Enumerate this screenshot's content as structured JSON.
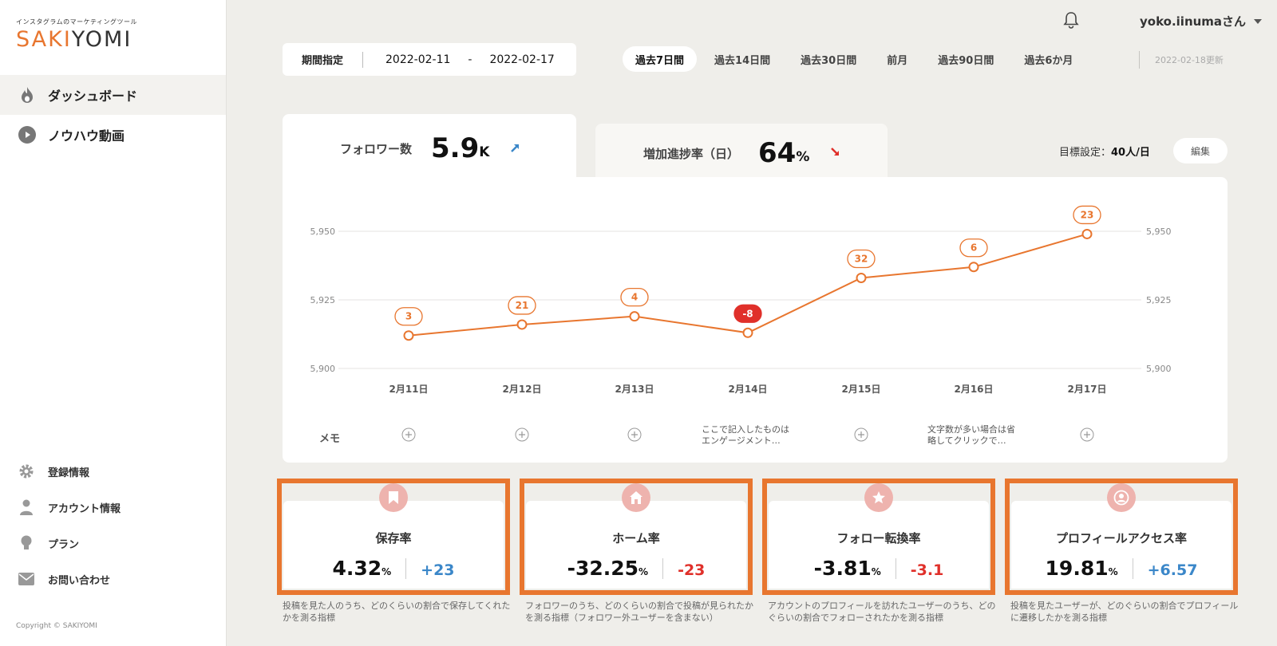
{
  "sidebar": {
    "logo_sub": "インスタグラムのマーケティングツール",
    "logo_a": "SAKI",
    "logo_b": "YOMI",
    "nav": [
      {
        "label": "ダッシュボード",
        "icon": "flame-icon"
      },
      {
        "label": "ノウハウ動画",
        "icon": "play-circle-icon"
      }
    ],
    "sub_nav": [
      {
        "label": "登録情報",
        "icon": "gear-icon"
      },
      {
        "label": "アカウント情報",
        "icon": "person-icon"
      },
      {
        "label": "プラン",
        "icon": "lightbulb-icon"
      },
      {
        "label": "お問い合わせ",
        "icon": "mail-icon"
      }
    ],
    "copyright": "Copyright © SAKIYOMI"
  },
  "header": {
    "user": "yoko.iinumaさん",
    "date_label": "期間指定",
    "date_from": "2022-02-11",
    "date_sep": "-",
    "date_to": "2022-02-17",
    "periods": [
      "過去7日間",
      "過去14日間",
      "過去30日間",
      "前月",
      "過去90日間",
      "過去6か月"
    ],
    "active_period": 0,
    "updated": "2022-02-18更新"
  },
  "metrics": {
    "followers_label": "フォロワー数",
    "followers_value": "5.9",
    "followers_unit": "K",
    "growth_label": "増加進捗率（日）",
    "growth_value": "64",
    "growth_unit": "%",
    "goal_label": "目標設定：",
    "goal_value": "40人/日",
    "edit_label": "編集"
  },
  "chart_data": {
    "type": "line",
    "categories": [
      "2月11日",
      "2月12日",
      "2月13日",
      "2月14日",
      "2月15日",
      "2月16日",
      "2月17日"
    ],
    "values": [
      5912,
      5916,
      5919,
      5913,
      5933,
      5937,
      5949
    ],
    "data_labels": [
      "3",
      "21",
      "4",
      "-8",
      "32",
      "6",
      "23"
    ],
    "yticks": [
      "5,950",
      "5,925",
      "5,900"
    ],
    "ylim": [
      5900,
      5950
    ],
    "grid": true,
    "colors": {
      "line": "#e8762f",
      "negative": "#e0302a"
    }
  },
  "memo": {
    "label": "メモ",
    "notes": [
      {
        "index": 3,
        "text1": "ここで記入したものは",
        "text2": "エンゲージメント…"
      },
      {
        "index": 5,
        "text1": "文字数が多い場合は省",
        "text2": "略してクリックで…"
      }
    ]
  },
  "cards": [
    {
      "title": "保存率",
      "value": "4.32",
      "unit": "%",
      "delta": "+23",
      "sign": "pos",
      "icon": "bookmark-icon",
      "desc": "投稿を見た人のうち、どのくらいの割合で保存してくれたかを測る指標"
    },
    {
      "title": "ホーム率",
      "value": "-32.25",
      "unit": "%",
      "delta": "-23",
      "sign": "neg",
      "icon": "home-icon",
      "desc": "フォロワーのうち、どのくらいの割合で投稿が見られたかを測る指標（フォロワー外ユーザーを含まない）"
    },
    {
      "title": "フォロー転換率",
      "value": "-3.81",
      "unit": "%",
      "delta": "-3.1",
      "sign": "neg",
      "icon": "star-icon",
      "desc": "アカウントのプロフィールを訪れたユーザーのうち、どのぐらいの割合でフォローされたかを測る指標"
    },
    {
      "title": "プロフィールアクセス率",
      "value": "19.81",
      "unit": "%",
      "delta": "+6.57",
      "sign": "pos",
      "icon": "user-circle-icon",
      "desc": "投稿を見たユーザーが、どのぐらいの割合でプロフィールに遷移したかを測る指標"
    }
  ]
}
